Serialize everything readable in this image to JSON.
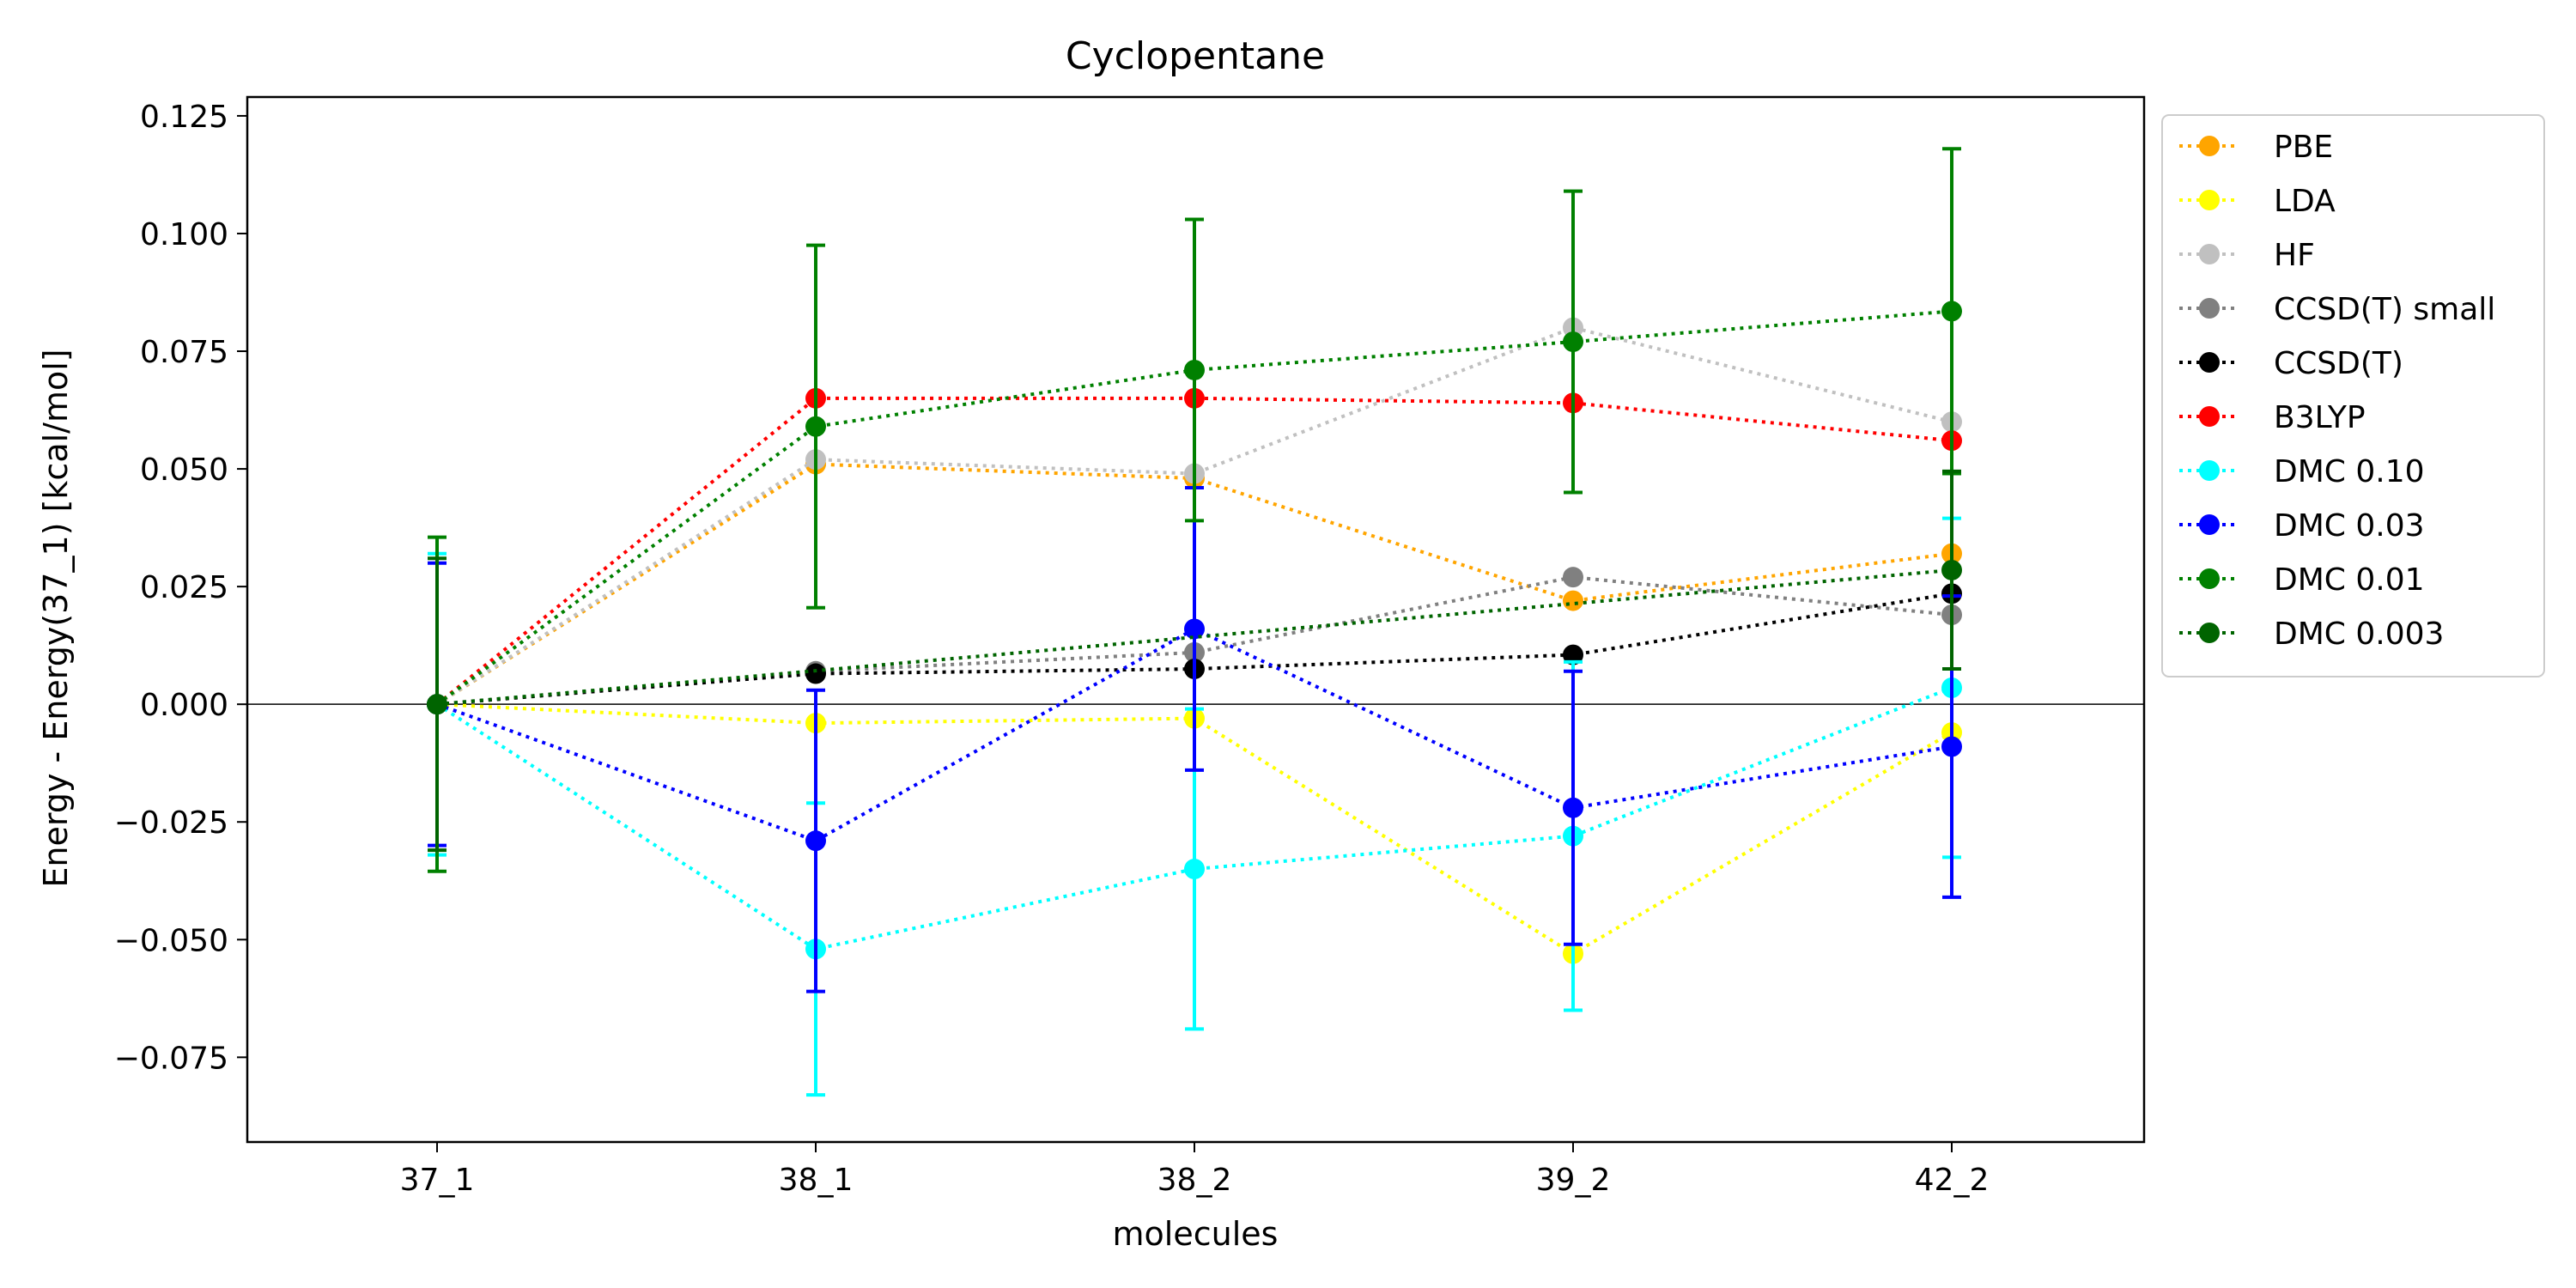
{
  "chart_data": {
    "type": "line",
    "title": "Cyclopentane",
    "xlabel": "molecules",
    "ylabel": "Energy - Energy(37_1) [kcal/mol]",
    "categories": [
      "37_1",
      "38_1",
      "38_2",
      "39_2",
      "42_2"
    ],
    "ylim": [
      -0.093,
      0.129
    ],
    "yticks": [
      -0.075,
      -0.05,
      -0.025,
      0.0,
      0.025,
      0.05,
      0.075,
      0.1,
      0.125
    ],
    "ytick_labels": [
      "−0.075",
      "−0.050",
      "−0.025",
      "0.000",
      "0.025",
      "0.050",
      "0.075",
      "0.100",
      "0.125"
    ],
    "zero_line": true,
    "grid": false,
    "legend_position": "outside right, top",
    "series": [
      {
        "name": "PBE",
        "color": "#FFA500",
        "values": [
          0.0,
          0.051,
          0.048,
          0.022,
          0.032
        ]
      },
      {
        "name": "LDA",
        "color": "#FFFF00",
        "values": [
          0.0,
          -0.004,
          -0.003,
          -0.053,
          -0.006
        ]
      },
      {
        "name": "HF",
        "color": "#C0C0C0",
        "values": [
          0.0,
          0.052,
          0.049,
          0.08,
          0.06
        ]
      },
      {
        "name": "CCSD(T) small",
        "color": "#808080",
        "values": [
          0.0,
          0.007,
          0.011,
          0.027,
          0.019
        ]
      },
      {
        "name": "CCSD(T)",
        "color": "#000000",
        "values": [
          0.0,
          0.0065,
          0.0075,
          0.0105,
          0.0235
        ]
      },
      {
        "name": "B3LYP",
        "color": "#FF0000",
        "values": [
          0.0,
          0.065,
          0.065,
          0.064,
          0.056
        ]
      },
      {
        "name": "DMC 0.10",
        "color": "#00FFFF",
        "values": [
          0.0,
          -0.052,
          -0.035,
          -0.028,
          0.0035
        ],
        "errors": [
          0.032,
          0.031,
          0.034,
          0.037,
          0.036
        ]
      },
      {
        "name": "DMC 0.03",
        "color": "#0000FF",
        "values": [
          0.0,
          -0.029,
          0.016,
          -0.022,
          -0.009
        ],
        "errors": [
          0.03,
          0.032,
          0.03,
          0.029,
          0.032
        ]
      },
      {
        "name": "DMC 0.01",
        "color": "#008000",
        "values": [
          0.0,
          0.059,
          0.071,
          0.077,
          0.0835
        ],
        "errors": [
          0.0355,
          0.0385,
          0.032,
          0.032,
          0.0345
        ]
      },
      {
        "name": "DMC 0.003",
        "color": "#006400",
        "values": [
          0.0,
          null,
          null,
          null,
          0.0285
        ],
        "errors": [
          0.031,
          null,
          null,
          null,
          0.021
        ]
      }
    ]
  }
}
